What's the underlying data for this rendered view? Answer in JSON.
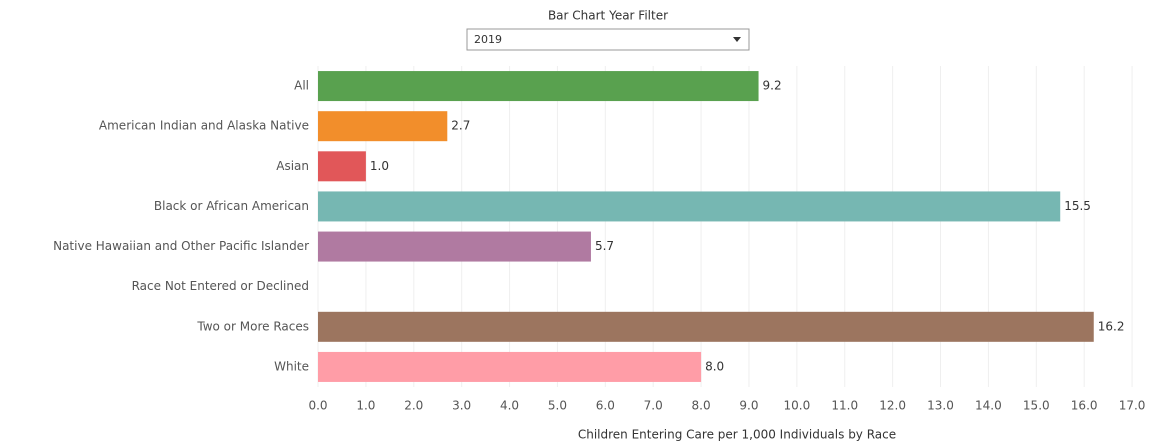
{
  "filter": {
    "label": "Bar Chart Year Filter",
    "value": "2019"
  },
  "chart_data": {
    "type": "bar",
    "orientation": "horizontal",
    "categories": [
      "All",
      "American Indian and Alaska Native",
      "Asian",
      "Black or African American",
      "Native Hawaiian and Other Pacific Islander",
      "Race Not Entered or Declined",
      "Two or More Races",
      "White"
    ],
    "values": [
      9.2,
      2.7,
      1.0,
      15.5,
      5.7,
      null,
      16.2,
      8.0
    ],
    "value_labels": [
      "9.2",
      "2.7",
      "1.0",
      "15.5",
      "5.7",
      null,
      "16.2",
      "8.0"
    ],
    "colors": [
      "#59a14f",
      "#f28e2b",
      "#e15759",
      "#76b7b2",
      "#b07aa1",
      null,
      "#9c755f",
      "#ff9da7"
    ],
    "xlabel": "Children Entering Care per 1,000 Individuals by Race",
    "xlim": [
      0,
      17.5
    ],
    "xticks": [
      {
        "value": 0,
        "label": "0.0"
      },
      {
        "value": 1,
        "label": "1.0"
      },
      {
        "value": 2,
        "label": "2.0"
      },
      {
        "value": 3,
        "label": "3.0"
      },
      {
        "value": 4,
        "label": "4.0"
      },
      {
        "value": 5,
        "label": "5.0"
      },
      {
        "value": 6,
        "label": "6.0"
      },
      {
        "value": 7,
        "label": "7.0"
      },
      {
        "value": 8,
        "label": "8.0"
      },
      {
        "value": 9,
        "label": "9.0"
      },
      {
        "value": 10,
        "label": "10.0"
      },
      {
        "value": 11,
        "label": "11.0"
      },
      {
        "value": 12,
        "label": "12.0"
      },
      {
        "value": 13,
        "label": "13.0"
      },
      {
        "value": 14,
        "label": "14.0"
      },
      {
        "value": 15,
        "label": "15.0"
      },
      {
        "value": 16,
        "label": "16.0"
      },
      {
        "value": 17,
        "label": "17.0"
      }
    ],
    "grid": true
  }
}
